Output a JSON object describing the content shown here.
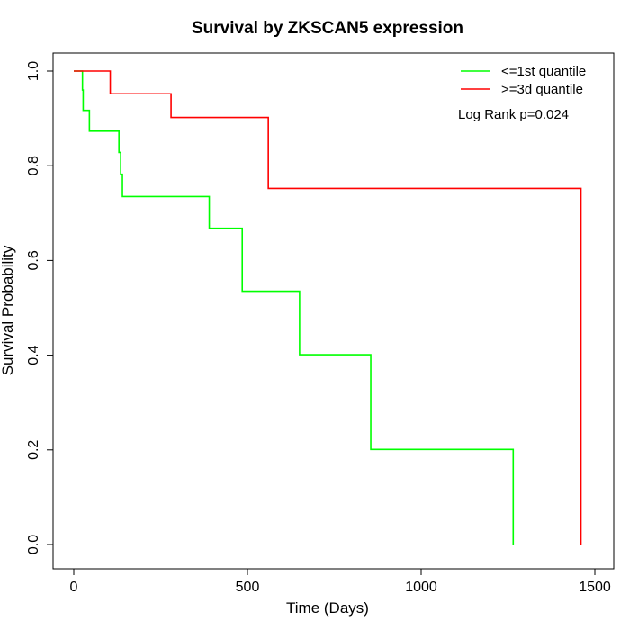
{
  "chart_data": {
    "type": "line",
    "title": "Survival by ZKSCAN5 expression",
    "xlabel": "Time (Days)",
    "ylabel": "Survival Probability",
    "xlim": [
      0,
      1500
    ],
    "ylim": [
      0,
      1
    ],
    "xticks": [
      0,
      500,
      1000,
      1500
    ],
    "yticks": [
      0.0,
      0.2,
      0.4,
      0.6,
      0.8,
      1.0
    ],
    "xtick_labels": [
      "0",
      "500",
      "1000",
      "1500"
    ],
    "ytick_labels": [
      "0.0",
      "0.2",
      "0.4",
      "0.6",
      "0.8",
      "1.0"
    ],
    "grid": false,
    "legend_position": "top-right",
    "annotation": "Log Rank p=0.024",
    "series": [
      {
        "name": "<=1st quantile",
        "color": "#00ff00",
        "step": true,
        "x": [
          0,
          25,
          27,
          45,
          130,
          135,
          140,
          390,
          485,
          650,
          855,
          1265
        ],
        "y": [
          1.0,
          0.96,
          0.917,
          0.873,
          0.828,
          0.782,
          0.735,
          0.668,
          0.535,
          0.401,
          0.201,
          0.0
        ]
      },
      {
        "name": ">=3d quantile",
        "color": "#ff0000",
        "step": true,
        "x": [
          0,
          105,
          280,
          560,
          1460
        ],
        "y": [
          1.0,
          0.952,
          0.902,
          0.752,
          0.0
        ]
      }
    ]
  }
}
